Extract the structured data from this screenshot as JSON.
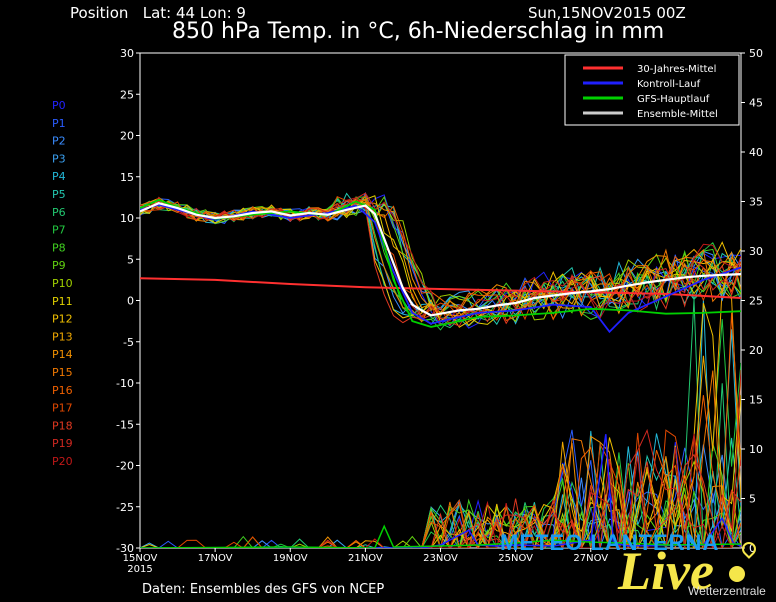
{
  "header": {
    "position": "Position   Lat: 44 Lon: 9",
    "date": "Sun,15NOV2015 00Z",
    "title": "850 hPa Temp. in °C, 6h-Niederschlag in mm"
  },
  "footer": "Daten: Ensembles des GFS von NCEP",
  "watermark": {
    "line1": "METEO LANTERNA",
    "line2": "Live",
    "line3": "Wetterzentrale"
  },
  "chart_data": {
    "type": "line",
    "x_ticks": [
      "15NOV\n2015",
      "17NOV",
      "19NOV",
      "21NOV",
      "23NOV",
      "25NOV",
      "27NOV"
    ],
    "x_range_days": [
      0,
      16
    ],
    "y_left": {
      "min": -30,
      "max": 30,
      "ticks": [
        30,
        25,
        20,
        15,
        10,
        5,
        0,
        -5,
        -10,
        -15,
        -20,
        -25,
        -30
      ],
      "unit": "°C"
    },
    "y_right": {
      "min": 0,
      "max": 50,
      "ticks": [
        50,
        45,
        40,
        35,
        30,
        25,
        20,
        15,
        10,
        5,
        0
      ],
      "unit": "mm"
    },
    "legend": [
      {
        "label": "30-Jahres-Mittel",
        "color": "#ff3030"
      },
      {
        "label": "Kontroll-Lauf",
        "color": "#2020ff"
      },
      {
        "label": "GFS-Hauptlauf",
        "color": "#00d000"
      },
      {
        "label": "Ensemble-Mittel",
        "color": "#cccccc"
      }
    ],
    "members": [
      "P0",
      "P1",
      "P2",
      "P3",
      "P4",
      "P5",
      "P6",
      "P7",
      "P8",
      "P9",
      "P10",
      "P11",
      "P12",
      "P13",
      "P14",
      "P15",
      "P16",
      "P17",
      "P18",
      "P19",
      "P20"
    ],
    "member_colors": [
      "#2222ff",
      "#2a5cff",
      "#3a8cff",
      "#3aa0f0",
      "#22b8d8",
      "#22c8b0",
      "#22c870",
      "#22c840",
      "#40d020",
      "#60d010",
      "#a0d000",
      "#e0d000",
      "#f0c000",
      "#f0a800",
      "#f09000",
      "#f07800",
      "#f06000",
      "#e04800",
      "#e03820",
      "#d02820",
      "#c01818"
    ],
    "climatology": [
      [
        0,
        2.7
      ],
      [
        2,
        2.5
      ],
      [
        4,
        2.0
      ],
      [
        6,
        1.6
      ],
      [
        8,
        1.4
      ],
      [
        10,
        1.2
      ],
      [
        12,
        1.0
      ],
      [
        14,
        0.8
      ],
      [
        16,
        0.3
      ]
    ],
    "ensemble_mean": [
      [
        0,
        10.8
      ],
      [
        0.5,
        11.8
      ],
      [
        1,
        11.2
      ],
      [
        1.5,
        10.4
      ],
      [
        2,
        10.0
      ],
      [
        2.5,
        10.2
      ],
      [
        3,
        10.6
      ],
      [
        3.5,
        10.8
      ],
      [
        4,
        10.3
      ],
      [
        4.5,
        10.6
      ],
      [
        5,
        10.4
      ],
      [
        5.5,
        11.0
      ],
      [
        6,
        11.5
      ],
      [
        6.25,
        10.5
      ],
      [
        6.5,
        7.5
      ],
      [
        6.75,
        4.5
      ],
      [
        7,
        1.5
      ],
      [
        7.25,
        -0.5
      ],
      [
        7.5,
        -1.2
      ],
      [
        7.75,
        -1.8
      ],
      [
        8,
        -1.6
      ],
      [
        8.5,
        -1.2
      ],
      [
        9,
        -1.0
      ],
      [
        9.5,
        -0.6
      ],
      [
        10,
        -0.3
      ],
      [
        10.5,
        0.3
      ],
      [
        11,
        0.6
      ],
      [
        11.5,
        0.9
      ],
      [
        12,
        1.1
      ],
      [
        12.5,
        1.4
      ],
      [
        13,
        1.8
      ],
      [
        13.5,
        2.2
      ],
      [
        14,
        2.5
      ],
      [
        14.5,
        2.8
      ],
      [
        15,
        3.0
      ],
      [
        15.5,
        3.1
      ],
      [
        16,
        3.2
      ]
    ],
    "control_run": [
      [
        0,
        11.0
      ],
      [
        0.5,
        11.6
      ],
      [
        1,
        11.0
      ],
      [
        2,
        9.8
      ],
      [
        3,
        10.8
      ],
      [
        4,
        10.0
      ],
      [
        5,
        10.6
      ],
      [
        5.75,
        11.5
      ],
      [
        6.25,
        9.5
      ],
      [
        6.75,
        3.5
      ],
      [
        7.25,
        -1.5
      ],
      [
        7.75,
        -2.8
      ],
      [
        8.5,
        -2.0
      ],
      [
        9,
        -1.5
      ],
      [
        10,
        -1.2
      ],
      [
        11,
        -0.5
      ],
      [
        12,
        -0.8
      ],
      [
        12.5,
        -3.8
      ],
      [
        13,
        -1.5
      ],
      [
        14,
        0.5
      ],
      [
        15,
        2.5
      ],
      [
        16,
        4.0
      ]
    ],
    "main_run": [
      [
        0,
        11.2
      ],
      [
        0.5,
        12.2
      ],
      [
        1,
        11.3
      ],
      [
        2,
        9.9
      ],
      [
        3,
        10.4
      ],
      [
        4,
        10.8
      ],
      [
        5,
        10.3
      ],
      [
        5.75,
        12.0
      ],
      [
        6.25,
        11.0
      ],
      [
        6.75,
        2.5
      ],
      [
        7.25,
        -2.5
      ],
      [
        7.75,
        -3.2
      ],
      [
        8.5,
        -2.5
      ],
      [
        9,
        -2.0
      ],
      [
        10,
        -1.8
      ],
      [
        11,
        -1.5
      ],
      [
        12,
        -1.0
      ],
      [
        13,
        -1.2
      ],
      [
        14,
        -1.6
      ],
      [
        15,
        -1.5
      ],
      [
        16,
        -1.3
      ]
    ],
    "precip_control": [
      [
        0,
        0
      ],
      [
        7.5,
        0
      ],
      [
        8,
        0.3
      ],
      [
        8.75,
        1.8
      ],
      [
        9,
        0.3
      ],
      [
        9.5,
        0.2
      ],
      [
        10,
        0.3
      ],
      [
        11,
        0.2
      ],
      [
        12,
        0.8
      ],
      [
        12.4,
        11.5
      ],
      [
        12.6,
        0.5
      ],
      [
        13,
        0.2
      ],
      [
        15,
        0.3
      ],
      [
        15.5,
        3.0
      ],
      [
        15.8,
        0.5
      ],
      [
        16,
        0.2
      ]
    ],
    "precip_main": [
      [
        0,
        0
      ],
      [
        4,
        0.1
      ],
      [
        6.25,
        0
      ],
      [
        6.5,
        2.2
      ],
      [
        6.75,
        0.1
      ],
      [
        8,
        0.2
      ],
      [
        9,
        0.3
      ],
      [
        10,
        0.5
      ],
      [
        11,
        0.8
      ],
      [
        12,
        0.6
      ],
      [
        13,
        0.5
      ],
      [
        14,
        0.3
      ],
      [
        16,
        0.4
      ]
    ]
  }
}
